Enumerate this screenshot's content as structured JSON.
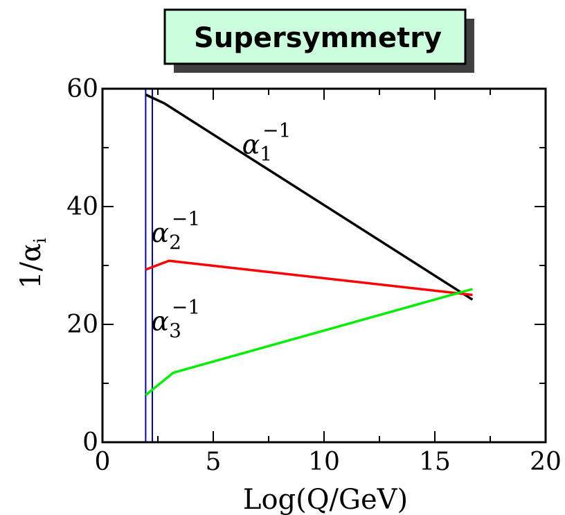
{
  "chart_data": {
    "type": "line",
    "title": "Supersymmetry",
    "xlabel": "Log(Q/GeV)",
    "ylabel_main": "1/α",
    "ylabel_sub": "i",
    "xlim": [
      0,
      20
    ],
    "ylim": [
      0,
      60
    ],
    "x_ticks": [
      0,
      5,
      10,
      15,
      20
    ],
    "y_ticks": [
      0,
      20,
      40,
      60
    ],
    "grid": false,
    "colors": {
      "title_box": "#ccffdd",
      "vertical_lines": "#0000cc"
    },
    "vertical_lines_x": [
      1.95,
      2.25
    ],
    "series": [
      {
        "label_base": "α",
        "label_sub": "1",
        "label_sup": "−1",
        "label_pos": [
          6.3,
          49
        ],
        "color": "#000000",
        "x": [
          1.95,
          2.8,
          16.7
        ],
        "y": [
          59.0,
          57.5,
          24.2
        ]
      },
      {
        "label_base": "α",
        "label_sub": "2",
        "label_sup": "−1",
        "label_pos": [
          2.2,
          34
        ],
        "color": "#ff0000",
        "x": [
          1.95,
          3.0,
          16.7
        ],
        "y": [
          29.3,
          30.8,
          25.0
        ]
      },
      {
        "label_base": "α",
        "label_sub": "3",
        "label_sup": "−1",
        "label_pos": [
          2.2,
          19
        ],
        "color": "#00ee00",
        "x": [
          1.95,
          3.2,
          16.7
        ],
        "y": [
          8.0,
          11.8,
          26.0
        ]
      }
    ]
  }
}
